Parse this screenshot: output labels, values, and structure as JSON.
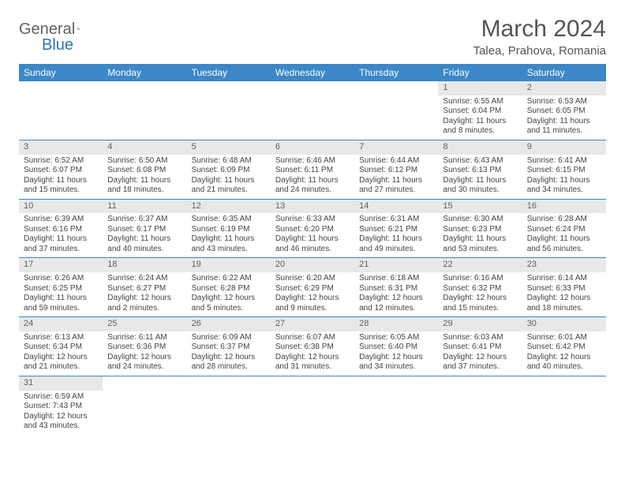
{
  "logo": {
    "text1": "General",
    "text2": "Blue"
  },
  "title": "March 2024",
  "location": "Talea, Prahova, Romania",
  "colors": {
    "header_bg": "#3b87c8",
    "header_text": "#ffffff",
    "daynum_bg": "#e8e8e8",
    "border": "#3b87c8",
    "text": "#444444",
    "title_text": "#555555"
  },
  "weekdays": [
    "Sunday",
    "Monday",
    "Tuesday",
    "Wednesday",
    "Thursday",
    "Friday",
    "Saturday"
  ],
  "weeks": [
    [
      {
        "n": "",
        "sr": "",
        "ss": "",
        "dl": ""
      },
      {
        "n": "",
        "sr": "",
        "ss": "",
        "dl": ""
      },
      {
        "n": "",
        "sr": "",
        "ss": "",
        "dl": ""
      },
      {
        "n": "",
        "sr": "",
        "ss": "",
        "dl": ""
      },
      {
        "n": "",
        "sr": "",
        "ss": "",
        "dl": ""
      },
      {
        "n": "1",
        "sr": "Sunrise: 6:55 AM",
        "ss": "Sunset: 6:04 PM",
        "dl": "Daylight: 11 hours and 8 minutes."
      },
      {
        "n": "2",
        "sr": "Sunrise: 6:53 AM",
        "ss": "Sunset: 6:05 PM",
        "dl": "Daylight: 11 hours and 11 minutes."
      }
    ],
    [
      {
        "n": "3",
        "sr": "Sunrise: 6:52 AM",
        "ss": "Sunset: 6:07 PM",
        "dl": "Daylight: 11 hours and 15 minutes."
      },
      {
        "n": "4",
        "sr": "Sunrise: 6:50 AM",
        "ss": "Sunset: 6:08 PM",
        "dl": "Daylight: 11 hours and 18 minutes."
      },
      {
        "n": "5",
        "sr": "Sunrise: 6:48 AM",
        "ss": "Sunset: 6:09 PM",
        "dl": "Daylight: 11 hours and 21 minutes."
      },
      {
        "n": "6",
        "sr": "Sunrise: 6:46 AM",
        "ss": "Sunset: 6:11 PM",
        "dl": "Daylight: 11 hours and 24 minutes."
      },
      {
        "n": "7",
        "sr": "Sunrise: 6:44 AM",
        "ss": "Sunset: 6:12 PM",
        "dl": "Daylight: 11 hours and 27 minutes."
      },
      {
        "n": "8",
        "sr": "Sunrise: 6:43 AM",
        "ss": "Sunset: 6:13 PM",
        "dl": "Daylight: 11 hours and 30 minutes."
      },
      {
        "n": "9",
        "sr": "Sunrise: 6:41 AM",
        "ss": "Sunset: 6:15 PM",
        "dl": "Daylight: 11 hours and 34 minutes."
      }
    ],
    [
      {
        "n": "10",
        "sr": "Sunrise: 6:39 AM",
        "ss": "Sunset: 6:16 PM",
        "dl": "Daylight: 11 hours and 37 minutes."
      },
      {
        "n": "11",
        "sr": "Sunrise: 6:37 AM",
        "ss": "Sunset: 6:17 PM",
        "dl": "Daylight: 11 hours and 40 minutes."
      },
      {
        "n": "12",
        "sr": "Sunrise: 6:35 AM",
        "ss": "Sunset: 6:19 PM",
        "dl": "Daylight: 11 hours and 43 minutes."
      },
      {
        "n": "13",
        "sr": "Sunrise: 6:33 AM",
        "ss": "Sunset: 6:20 PM",
        "dl": "Daylight: 11 hours and 46 minutes."
      },
      {
        "n": "14",
        "sr": "Sunrise: 6:31 AM",
        "ss": "Sunset: 6:21 PM",
        "dl": "Daylight: 11 hours and 49 minutes."
      },
      {
        "n": "15",
        "sr": "Sunrise: 6:30 AM",
        "ss": "Sunset: 6:23 PM",
        "dl": "Daylight: 11 hours and 53 minutes."
      },
      {
        "n": "16",
        "sr": "Sunrise: 6:28 AM",
        "ss": "Sunset: 6:24 PM",
        "dl": "Daylight: 11 hours and 56 minutes."
      }
    ],
    [
      {
        "n": "17",
        "sr": "Sunrise: 6:26 AM",
        "ss": "Sunset: 6:25 PM",
        "dl": "Daylight: 11 hours and 59 minutes."
      },
      {
        "n": "18",
        "sr": "Sunrise: 6:24 AM",
        "ss": "Sunset: 6:27 PM",
        "dl": "Daylight: 12 hours and 2 minutes."
      },
      {
        "n": "19",
        "sr": "Sunrise: 6:22 AM",
        "ss": "Sunset: 6:28 PM",
        "dl": "Daylight: 12 hours and 5 minutes."
      },
      {
        "n": "20",
        "sr": "Sunrise: 6:20 AM",
        "ss": "Sunset: 6:29 PM",
        "dl": "Daylight: 12 hours and 9 minutes."
      },
      {
        "n": "21",
        "sr": "Sunrise: 6:18 AM",
        "ss": "Sunset: 6:31 PM",
        "dl": "Daylight: 12 hours and 12 minutes."
      },
      {
        "n": "22",
        "sr": "Sunrise: 6:16 AM",
        "ss": "Sunset: 6:32 PM",
        "dl": "Daylight: 12 hours and 15 minutes."
      },
      {
        "n": "23",
        "sr": "Sunrise: 6:14 AM",
        "ss": "Sunset: 6:33 PM",
        "dl": "Daylight: 12 hours and 18 minutes."
      }
    ],
    [
      {
        "n": "24",
        "sr": "Sunrise: 6:13 AM",
        "ss": "Sunset: 6:34 PM",
        "dl": "Daylight: 12 hours and 21 minutes."
      },
      {
        "n": "25",
        "sr": "Sunrise: 6:11 AM",
        "ss": "Sunset: 6:36 PM",
        "dl": "Daylight: 12 hours and 24 minutes."
      },
      {
        "n": "26",
        "sr": "Sunrise: 6:09 AM",
        "ss": "Sunset: 6:37 PM",
        "dl": "Daylight: 12 hours and 28 minutes."
      },
      {
        "n": "27",
        "sr": "Sunrise: 6:07 AM",
        "ss": "Sunset: 6:38 PM",
        "dl": "Daylight: 12 hours and 31 minutes."
      },
      {
        "n": "28",
        "sr": "Sunrise: 6:05 AM",
        "ss": "Sunset: 6:40 PM",
        "dl": "Daylight: 12 hours and 34 minutes."
      },
      {
        "n": "29",
        "sr": "Sunrise: 6:03 AM",
        "ss": "Sunset: 6:41 PM",
        "dl": "Daylight: 12 hours and 37 minutes."
      },
      {
        "n": "30",
        "sr": "Sunrise: 6:01 AM",
        "ss": "Sunset: 6:42 PM",
        "dl": "Daylight: 12 hours and 40 minutes."
      }
    ],
    [
      {
        "n": "31",
        "sr": "Sunrise: 6:59 AM",
        "ss": "Sunset: 7:43 PM",
        "dl": "Daylight: 12 hours and 43 minutes."
      },
      {
        "n": "",
        "sr": "",
        "ss": "",
        "dl": ""
      },
      {
        "n": "",
        "sr": "",
        "ss": "",
        "dl": ""
      },
      {
        "n": "",
        "sr": "",
        "ss": "",
        "dl": ""
      },
      {
        "n": "",
        "sr": "",
        "ss": "",
        "dl": ""
      },
      {
        "n": "",
        "sr": "",
        "ss": "",
        "dl": ""
      },
      {
        "n": "",
        "sr": "",
        "ss": "",
        "dl": ""
      }
    ]
  ]
}
